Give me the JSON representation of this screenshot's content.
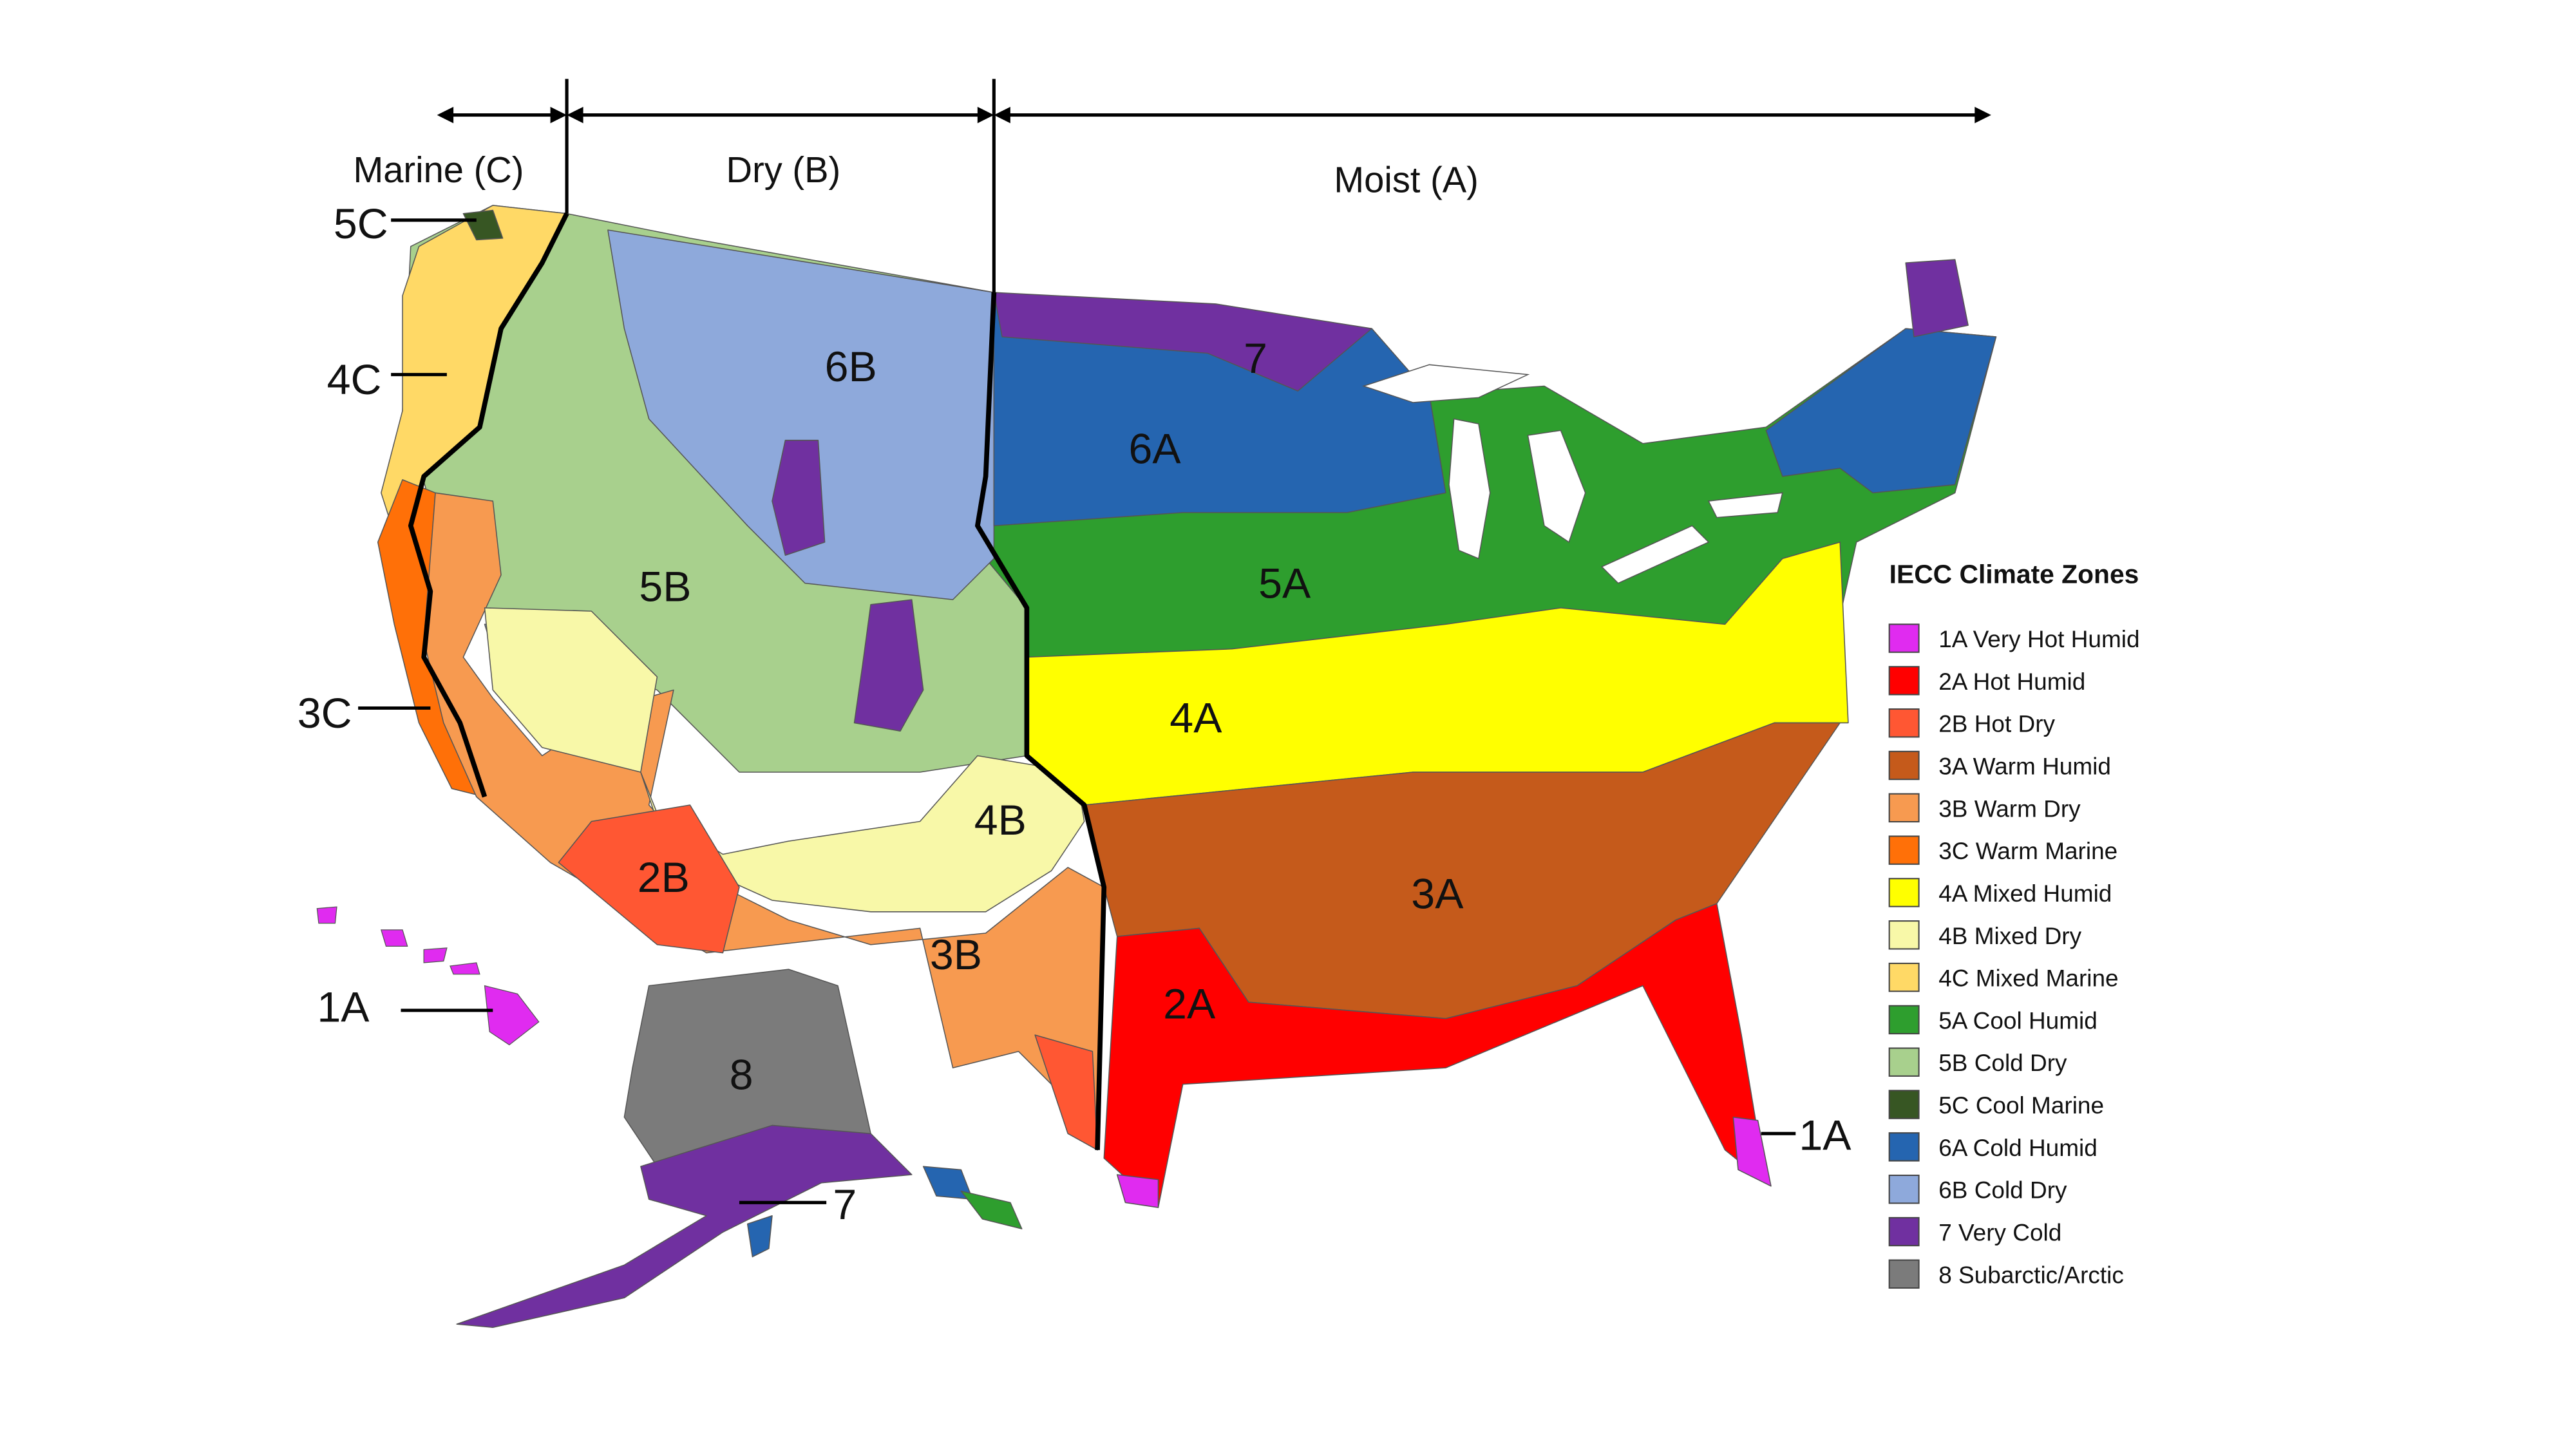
{
  "headers": {
    "marine": "Marine (C)",
    "dry": "Dry (B)",
    "moist": "Moist (A)"
  },
  "zone_labels": {
    "z6B": "6B",
    "z7": "7",
    "z6A": "6A",
    "z5B": "5B",
    "z5A": "5A",
    "z4A": "4A",
    "z4B": "4B",
    "z3A": "3A",
    "z2B": "2B",
    "z3B": "3B",
    "z2A": "2A",
    "z8": "8"
  },
  "callouts": {
    "c5C": "5C",
    "c4C": "4C",
    "c3C": "3C",
    "c1A_hawaii": "1A",
    "c1A_florida": "1A",
    "c7_alaska": "7"
  },
  "legend": {
    "title": "IECC Climate Zones",
    "items": [
      {
        "label": "1A Very Hot Humid",
        "color": "#E02BF0"
      },
      {
        "label": "2A Hot Humid",
        "color": "#FF0000"
      },
      {
        "label": "2B Hot Dry",
        "color": "#FF5733"
      },
      {
        "label": "3A Warm Humid",
        "color": "#C55A1B"
      },
      {
        "label": "3B Warm Dry",
        "color": "#F79A50"
      },
      {
        "label": "3C Warm Marine",
        "color": "#FF7008"
      },
      {
        "label": "4A Mixed Humid",
        "color": "#FFFF00"
      },
      {
        "label": "4B Mixed Dry",
        "color": "#F8F8A8"
      },
      {
        "label": "4C Mixed Marine",
        "color": "#FFD966"
      },
      {
        "label": "5A Cool Humid",
        "color": "#2E9E2E"
      },
      {
        "label": "5B Cold Dry",
        "color": "#A8D08D"
      },
      {
        "label": "5C Cool Marine",
        "color": "#375623"
      },
      {
        "label": "6A Cold Humid",
        "color": "#2565B0"
      },
      {
        "label": "6B Cold Dry",
        "color": "#8EA9DB"
      },
      {
        "label": "7 Very Cold",
        "color": "#7030A0"
      },
      {
        "label": "8 Subarctic/Arctic",
        "color": "#7B7B7B"
      }
    ]
  }
}
